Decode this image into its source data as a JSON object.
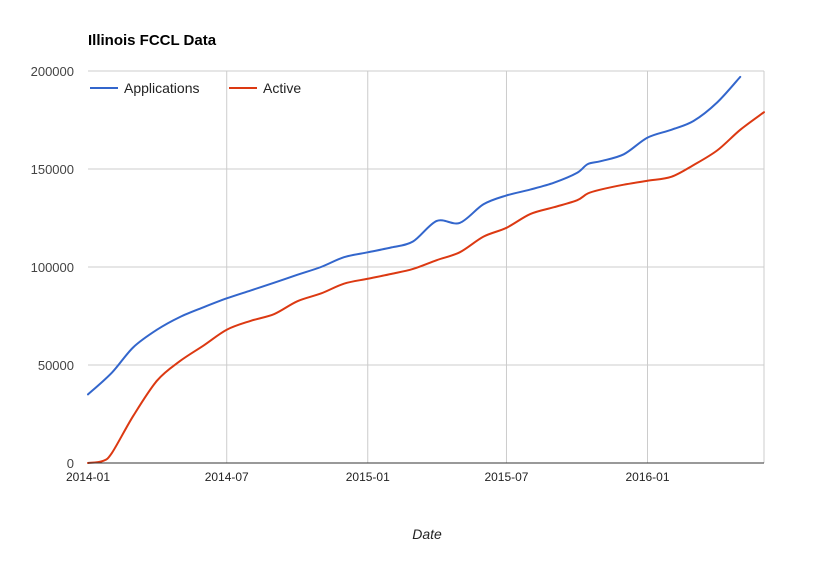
{
  "chart_data": {
    "type": "line",
    "title": "Illinois FCCL Data",
    "xlabel": "Date",
    "ylabel": "",
    "ylim": [
      0,
      200000
    ],
    "y_ticks": [
      "0",
      "50000",
      "100000",
      "150000",
      "200000"
    ],
    "x_ticks": [
      "2014-01",
      "2014-07",
      "2015-01",
      "2015-07",
      "2016-01"
    ],
    "x_range": [
      "2014-01-01",
      "2016-06-01"
    ],
    "grid": true,
    "legend_position": "top-left",
    "series": [
      {
        "name": "Applications",
        "color": "#3366cc",
        "points": [
          [
            "2014-01-01",
            35000
          ],
          [
            "2014-02-01",
            46000
          ],
          [
            "2014-03-01",
            59000
          ],
          [
            "2014-04-01",
            68000
          ],
          [
            "2014-05-01",
            74500
          ],
          [
            "2014-06-01",
            79500
          ],
          [
            "2014-07-01",
            84000
          ],
          [
            "2014-08-01",
            88000
          ],
          [
            "2014-09-01",
            92000
          ],
          [
            "2014-10-01",
            96000
          ],
          [
            "2014-11-01",
            100000
          ],
          [
            "2014-12-01",
            105000
          ],
          [
            "2015-01-01",
            107500
          ],
          [
            "2015-02-01",
            110000
          ],
          [
            "2015-03-01",
            113000
          ],
          [
            "2015-04-01",
            123500
          ],
          [
            "2015-05-01",
            122500
          ],
          [
            "2015-06-01",
            132000
          ],
          [
            "2015-07-01",
            136500
          ],
          [
            "2015-08-01",
            139500
          ],
          [
            "2015-09-01",
            143000
          ],
          [
            "2015-10-01",
            148000
          ],
          [
            "2015-10-15",
            152500
          ],
          [
            "2015-11-01",
            154000
          ],
          [
            "2015-12-01",
            157500
          ],
          [
            "2016-01-01",
            166000
          ],
          [
            "2016-02-01",
            170000
          ],
          [
            "2016-03-01",
            174500
          ],
          [
            "2016-04-01",
            184000
          ],
          [
            "2016-05-01",
            197000
          ]
        ]
      },
      {
        "name": "Active",
        "color": "#dc3912",
        "points": [
          [
            "2014-01-01",
            0
          ],
          [
            "2014-01-20",
            1000
          ],
          [
            "2014-02-01",
            5000
          ],
          [
            "2014-03-01",
            24000
          ],
          [
            "2014-04-01",
            42000
          ],
          [
            "2014-05-01",
            52000
          ],
          [
            "2014-06-01",
            60000
          ],
          [
            "2014-07-01",
            68000
          ],
          [
            "2014-08-01",
            72500
          ],
          [
            "2014-09-01",
            76000
          ],
          [
            "2014-10-01",
            82500
          ],
          [
            "2014-11-01",
            86500
          ],
          [
            "2014-12-01",
            91500
          ],
          [
            "2015-01-01",
            94000
          ],
          [
            "2015-02-01",
            96500
          ],
          [
            "2015-03-01",
            99000
          ],
          [
            "2015-04-01",
            103500
          ],
          [
            "2015-05-01",
            107500
          ],
          [
            "2015-06-01",
            115500
          ],
          [
            "2015-07-01",
            120000
          ],
          [
            "2015-08-01",
            127000
          ],
          [
            "2015-09-01",
            130500
          ],
          [
            "2015-10-01",
            134000
          ],
          [
            "2015-10-15",
            137500
          ],
          [
            "2015-11-01",
            139500
          ],
          [
            "2015-12-01",
            142000
          ],
          [
            "2016-01-01",
            144000
          ],
          [
            "2016-02-01",
            146000
          ],
          [
            "2016-03-01",
            152000
          ],
          [
            "2016-04-01",
            159500
          ],
          [
            "2016-05-01",
            170000
          ],
          [
            "2016-06-01",
            179000
          ]
        ]
      }
    ]
  }
}
